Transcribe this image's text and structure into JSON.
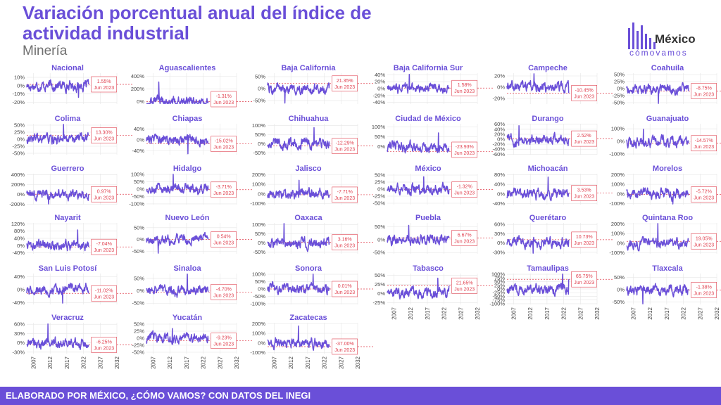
{
  "header": {
    "title": "Variación porcentual anual del índice de actividad industrial",
    "subtitle": "Minería"
  },
  "logo": {
    "name": "México",
    "tagline": "cómovamos"
  },
  "footer": {
    "text": "ELABORADO POR MÉXICO, ¿CÓMO VAMOS? CON DATOS DEL INEGI"
  },
  "colors": {
    "accent": "#6a4fd8",
    "annotation": "#e0404f",
    "grid": "#e6e6e6"
  },
  "chart_data": {
    "type": "line",
    "x_range": [
      2005,
      2032
    ],
    "x_ticks": [
      "2007",
      "2012",
      "2017",
      "2022",
      "2027",
      "2032"
    ],
    "annotation_date": "Jun 2023",
    "panels": [
      {
        "name": "Nacional",
        "ticks": [
          "10%",
          "0%",
          "-10%",
          "-20%"
        ],
        "tick_values": [
          10,
          0,
          -10,
          -20
        ],
        "ylim": [
          -22,
          15
        ],
        "last_value": 1.55,
        "label": "1.55%"
      },
      {
        "name": "Aguascalientes",
        "ticks": [
          "400%",
          "200%",
          "0%"
        ],
        "tick_values": [
          400,
          200,
          0
        ],
        "ylim": [
          -40,
          450
        ],
        "last_value": -1.31,
        "label": "-1.31%"
      },
      {
        "name": "Baja California",
        "ticks": [
          "50%",
          "0%",
          "-50%"
        ],
        "tick_values": [
          50,
          0,
          -50
        ],
        "ylim": [
          -65,
          65
        ],
        "last_value": 21.35,
        "label": "21.35%"
      },
      {
        "name": "Baja California Sur",
        "ticks": [
          "40%",
          "20%",
          "0%",
          "-20%",
          "-40%"
        ],
        "tick_values": [
          40,
          20,
          0,
          -20,
          -40
        ],
        "ylim": [
          -45,
          45
        ],
        "last_value": 1.58,
        "label": "1.58%"
      },
      {
        "name": "Campeche",
        "ticks": [
          "20%",
          "0%",
          "-20%"
        ],
        "tick_values": [
          20,
          0,
          -20
        ],
        "ylim": [
          -30,
          25
        ],
        "last_value": -10.45,
        "label": "-10.45%"
      },
      {
        "name": "Coahuila",
        "ticks": [
          "50%",
          "25%",
          "0%",
          "-25%",
          "-50%"
        ],
        "tick_values": [
          50,
          25,
          0,
          -25,
          -50
        ],
        "ylim": [
          -55,
          55
        ],
        "last_value": -8.75,
        "label": "-8.75%"
      },
      {
        "name": "Colima",
        "ticks": [
          "50%",
          "25%",
          "0%",
          "-25%",
          "-50%"
        ],
        "tick_values": [
          50,
          25,
          0,
          -25,
          -50
        ],
        "ylim": [
          -55,
          55
        ],
        "last_value": 13.3,
        "label": "13.30%"
      },
      {
        "name": "Chiapas",
        "ticks": [
          "40%",
          "0%",
          "-40%"
        ],
        "tick_values": [
          40,
          0,
          -40
        ],
        "ylim": [
          -55,
          60
        ],
        "last_value": -15.02,
        "label": "-15.02%"
      },
      {
        "name": "Chihuahua",
        "ticks": [
          "100%",
          "50%",
          "0%",
          "-50%"
        ],
        "tick_values": [
          100,
          50,
          0,
          -50
        ],
        "ylim": [
          -60,
          110
        ],
        "last_value": -12.29,
        "label": "-12.29%"
      },
      {
        "name": "Ciudad de México",
        "ticks": [
          "100%",
          "50%",
          "0%"
        ],
        "tick_values": [
          100,
          50,
          0
        ],
        "ylim": [
          -40,
          115
        ],
        "last_value": -23.93,
        "label": "-23.93%"
      },
      {
        "name": "Durango",
        "ticks": [
          "60%",
          "40%",
          "20%",
          "0%",
          "-20%",
          "-40%",
          "-60%"
        ],
        "tick_values": [
          60,
          40,
          20,
          0,
          -20,
          -40,
          -60
        ],
        "ylim": [
          -62,
          62
        ],
        "last_value": 2.52,
        "label": "2.52%"
      },
      {
        "name": "Guanajuato",
        "ticks": [
          "100%",
          "0%",
          "-100%"
        ],
        "tick_values": [
          100,
          0,
          -100
        ],
        "ylim": [
          -105,
          140
        ],
        "last_value": -14.57,
        "label": "-14.57%"
      },
      {
        "name": "Guerrero",
        "ticks": [
          "400%",
          "200%",
          "0%",
          "-200%"
        ],
        "tick_values": [
          400,
          200,
          0,
          -200
        ],
        "ylim": [
          -210,
          420
        ],
        "last_value": 0.97,
        "label": "0.97%"
      },
      {
        "name": "Hidalgo",
        "ticks": [
          "100%",
          "50%",
          "0%",
          "-50%",
          "-100%"
        ],
        "tick_values": [
          100,
          50,
          0,
          -50,
          -100
        ],
        "ylim": [
          -105,
          105
        ],
        "last_value": -3.71,
        "label": "-3.71%"
      },
      {
        "name": "Jalisco",
        "ticks": [
          "200%",
          "100%",
          "0%",
          "-100%"
        ],
        "tick_values": [
          200,
          100,
          0,
          -100
        ],
        "ylim": [
          -110,
          210
        ],
        "last_value": -7.71,
        "label": "-7.71%"
      },
      {
        "name": "México",
        "ticks": [
          "50%",
          "25%",
          "0%",
          "-25%",
          "-50%"
        ],
        "tick_values": [
          50,
          25,
          0,
          -25,
          -50
        ],
        "ylim": [
          -55,
          55
        ],
        "last_value": -1.32,
        "label": "-1.32%"
      },
      {
        "name": "Michoacán",
        "ticks": [
          "80%",
          "40%",
          "0%",
          "-40%"
        ],
        "tick_values": [
          80,
          40,
          0,
          -40
        ],
        "ylim": [
          -45,
          85
        ],
        "last_value": 3.53,
        "label": "3.53%"
      },
      {
        "name": "Morelos",
        "ticks": [
          "200%",
          "100%",
          "0%",
          "-100%"
        ],
        "tick_values": [
          200,
          100,
          0,
          -100
        ],
        "ylim": [
          -110,
          210
        ],
        "last_value": -5.72,
        "label": "-5.72%"
      },
      {
        "name": "Nayarit",
        "ticks": [
          "120%",
          "80%",
          "40%",
          "0%",
          "-40%"
        ],
        "tick_values": [
          120,
          80,
          40,
          0,
          -40
        ],
        "ylim": [
          -45,
          125
        ],
        "last_value": -7.04,
        "label": "-7.04%"
      },
      {
        "name": "Nuevo León",
        "ticks": [
          "50%",
          "0%",
          "-50%"
        ],
        "tick_values": [
          50,
          0,
          -50
        ],
        "ylim": [
          -60,
          70
        ],
        "last_value": 0.54,
        "label": "0.54%"
      },
      {
        "name": "Oaxaca",
        "ticks": [
          "100%",
          "50%",
          "0%",
          "-50%"
        ],
        "tick_values": [
          100,
          50,
          0,
          -50
        ],
        "ylim": [
          -60,
          110
        ],
        "last_value": 3.16,
        "label": "3.16%"
      },
      {
        "name": "Puebla",
        "ticks": [
          "50%",
          "0%",
          "-50%"
        ],
        "tick_values": [
          50,
          0,
          -50
        ],
        "ylim": [
          -55,
          65
        ],
        "last_value": 6.67,
        "label": "6.67%"
      },
      {
        "name": "Querétaro",
        "ticks": [
          "60%",
          "30%",
          "0%",
          "-30%"
        ],
        "tick_values": [
          60,
          30,
          0,
          -30
        ],
        "ylim": [
          -35,
          65
        ],
        "last_value": 10.73,
        "label": "10.73%"
      },
      {
        "name": "Quintana Roo",
        "ticks": [
          "200%",
          "100%",
          "0%",
          "-100%"
        ],
        "tick_values": [
          200,
          100,
          0,
          -100
        ],
        "ylim": [
          -110,
          210
        ],
        "last_value": 19.05,
        "label": "19.05%"
      },
      {
        "name": "San Luis Potosí",
        "ticks": [
          "40%",
          "0%",
          "-40%"
        ],
        "tick_values": [
          40,
          0,
          -40
        ],
        "ylim": [
          -45,
          50
        ],
        "last_value": -11.02,
        "label": "-11.02%"
      },
      {
        "name": "Sinaloa",
        "ticks": [
          "50%",
          "0%",
          "-50%"
        ],
        "tick_values": [
          50,
          0,
          -50
        ],
        "ylim": [
          -55,
          70
        ],
        "last_value": -4.7,
        "label": "-4.70%"
      },
      {
        "name": "Sonora",
        "ticks": [
          "100%",
          "50%",
          "0%",
          "-50%",
          "-100%"
        ],
        "tick_values": [
          100,
          50,
          0,
          -50,
          -100
        ],
        "ylim": [
          -105,
          105
        ],
        "last_value": 0.01,
        "label": "0.01%"
      },
      {
        "name": "Tabasco",
        "ticks": [
          "50%",
          "25%",
          "0%",
          "-25%"
        ],
        "tick_values": [
          50,
          25,
          0,
          -25
        ],
        "ylim": [
          -30,
          55
        ],
        "last_value": 21.65,
        "label": "21.65%"
      },
      {
        "name": "Tamaulipas",
        "ticks": [
          "100%",
          "75%",
          "50%",
          "25%",
          "0%",
          "-25%",
          "-50%",
          "-75%",
          "-100%"
        ],
        "tick_values": [
          100,
          75,
          50,
          25,
          0,
          -25,
          -50,
          -75,
          -100
        ],
        "ylim": [
          -105,
          105
        ],
        "last_value": 65.75,
        "label": "65.75%"
      },
      {
        "name": "Tlaxcala",
        "ticks": [
          "50%",
          "0%",
          "-50%"
        ],
        "tick_values": [
          50,
          0,
          -50
        ],
        "ylim": [
          -60,
          65
        ],
        "last_value": -1.38,
        "label": "-1.38%"
      },
      {
        "name": "Veracruz",
        "ticks": [
          "60%",
          "30%",
          "0%",
          "-30%"
        ],
        "tick_values": [
          60,
          30,
          0,
          -30
        ],
        "ylim": [
          -35,
          65
        ],
        "last_value": -6.25,
        "label": "-6.25%"
      },
      {
        "name": "Yucatán",
        "ticks": [
          "50%",
          "25%",
          "0%",
          "-25%",
          "-50%"
        ],
        "tick_values": [
          50,
          25,
          0,
          -25,
          -50
        ],
        "ylim": [
          -55,
          55
        ],
        "last_value": -9.23,
        "label": "-9.23%"
      },
      {
        "name": "Zacatecas",
        "ticks": [
          "200%",
          "100%",
          "0%",
          "-100%"
        ],
        "tick_values": [
          200,
          100,
          0,
          -100
        ],
        "ylim": [
          -110,
          210
        ],
        "last_value": -37.0,
        "label": "-37.00%"
      }
    ]
  }
}
